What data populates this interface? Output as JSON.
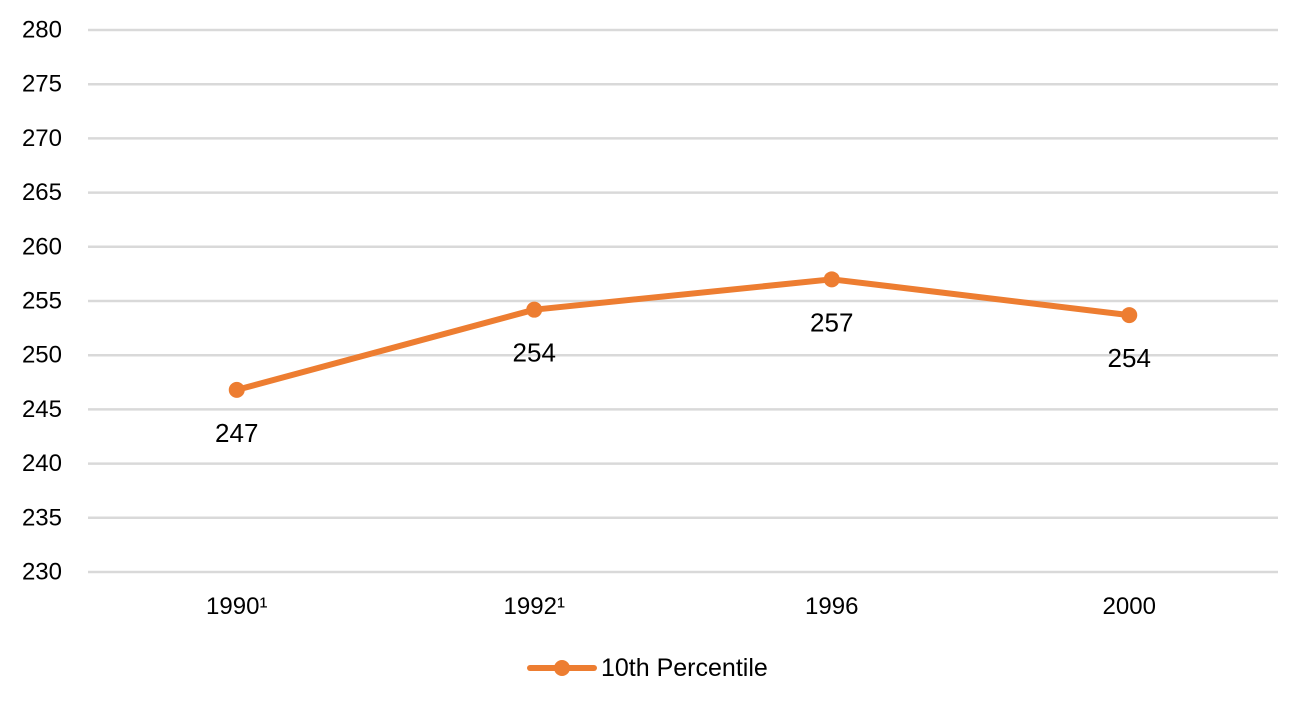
{
  "chart_data": {
    "type": "line",
    "title": "",
    "xlabel": "",
    "ylabel": "",
    "categories": [
      "1990¹",
      "1992¹",
      "1996",
      "2000"
    ],
    "series": [
      {
        "name": "10th Percentile",
        "values": [
          246.8,
          254.2,
          257.0,
          253.7
        ],
        "data_labels": [
          "247",
          "254",
          "257",
          "254"
        ],
        "color": "#ED7D31"
      }
    ],
    "ylim": [
      230,
      280
    ],
    "yticks": [
      230,
      235,
      240,
      245,
      250,
      255,
      260,
      265,
      270,
      275,
      280
    ],
    "grid": true,
    "gridline_color": "#D9D9D9",
    "legend": "bottom-center"
  }
}
